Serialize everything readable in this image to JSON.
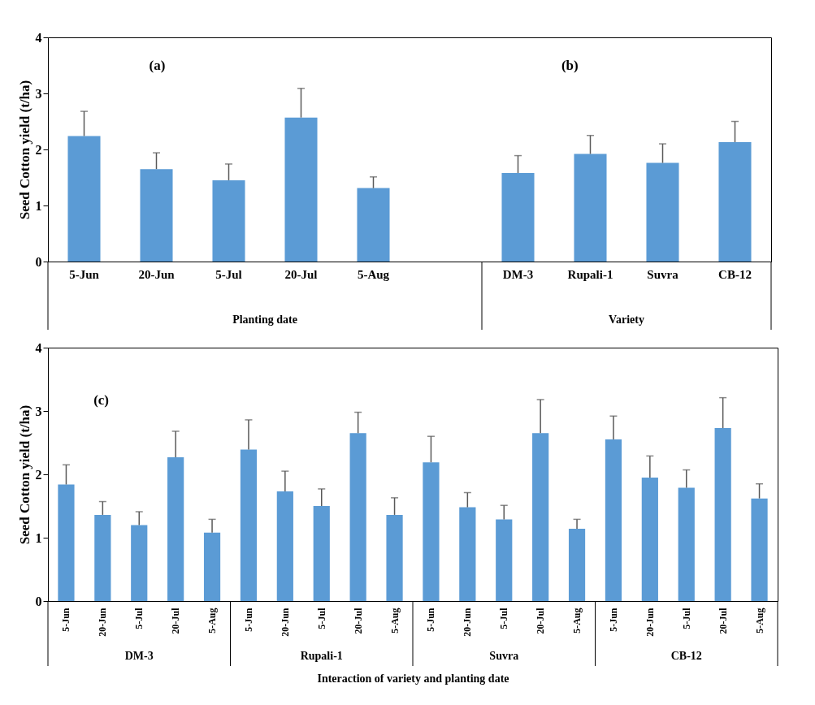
{
  "chart_data": [
    {
      "type": "bar",
      "categories": [
        "5-Jun",
        "20-Jun",
        "5-Jul",
        "20-Jul",
        "5-Aug",
        null,
        "DM-3",
        "Rupali-1",
        "Suvra",
        "CB-12"
      ],
      "values": [
        2.24,
        1.65,
        1.45,
        2.57,
        1.31,
        null,
        1.58,
        1.92,
        1.76,
        2.13
      ],
      "errors": [
        0.44,
        0.29,
        0.29,
        0.52,
        0.2,
        null,
        0.31,
        0.33,
        0.34,
        0.37
      ],
      "color": "#5b9bd5",
      "ylabel": "Seed Cotton yield (t/ha)",
      "ylim": [
        0,
        4
      ],
      "yticks": [
        0,
        1,
        2,
        3,
        4
      ],
      "annotations": [
        "(a)",
        "(b)",
        "Planting date",
        "Variety"
      ]
    },
    {
      "type": "bar",
      "categories": [
        "5-Jun",
        "20-Jun",
        "5-Jul",
        "20-Jul",
        "5-Aug",
        "5-Jun",
        "20-Jun",
        "5-Jul",
        "20-Jul",
        "5-Aug",
        "5-Jun",
        "20-Jun",
        "5-Jul",
        "20-Jul",
        "5-Aug",
        "5-Jun",
        "20-Jun",
        "5-Jul",
        "20-Jul",
        "5-Aug"
      ],
      "values": [
        1.84,
        1.36,
        1.2,
        2.27,
        1.08,
        2.39,
        1.73,
        1.5,
        2.65,
        1.36,
        2.19,
        1.48,
        1.29,
        2.65,
        1.14,
        2.55,
        1.95,
        1.79,
        2.73,
        1.62
      ],
      "errors": [
        0.31,
        0.21,
        0.21,
        0.41,
        0.21,
        0.47,
        0.32,
        0.27,
        0.33,
        0.27,
        0.41,
        0.23,
        0.22,
        0.53,
        0.15,
        0.37,
        0.34,
        0.28,
        0.48,
        0.23
      ],
      "color": "#5b9bd5",
      "ylabel": "Seed Cotton yield (t/ha)",
      "xlabel": "Interaction of variety and planting date",
      "ylim": [
        0,
        4
      ],
      "yticks": [
        0,
        1,
        2,
        3,
        4
      ],
      "annotations": [
        "(c)",
        "DM-3",
        "Rupali-1",
        "Suvra",
        "CB-12"
      ]
    }
  ]
}
